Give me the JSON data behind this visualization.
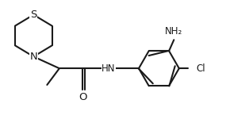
{
  "background_color": "#ffffff",
  "line_color": "#1a1a1a",
  "line_width": 1.5,
  "font_size_labels": 8.5,
  "xlim": [
    0,
    10
  ],
  "ylim": [
    0,
    5
  ]
}
